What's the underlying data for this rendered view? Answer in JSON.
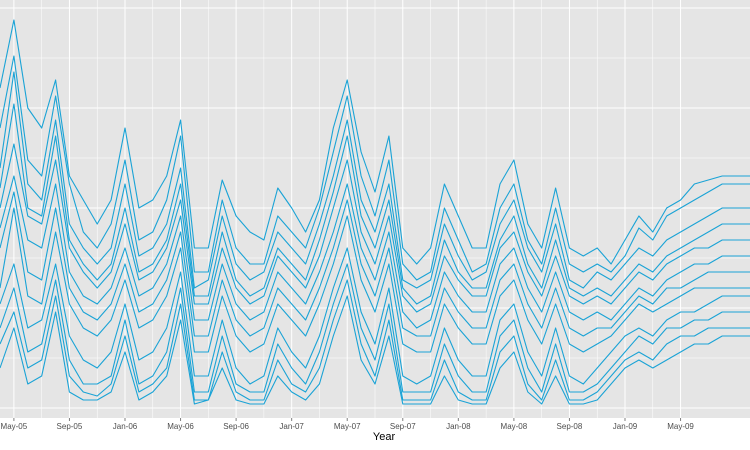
{
  "chart_data": {
    "type": "line",
    "xlabel": "Year",
    "ylabel": "",
    "title": "",
    "x_tick_labels": [
      "May-05",
      "Sep-05",
      "Jan-06",
      "May-06",
      "Sep-06",
      "Jan-07",
      "May-07",
      "Sep-07",
      "Jan-08",
      "May-08",
      "Sep-08",
      "Jan-09",
      "May-09"
    ],
    "xlim": [
      "2005-04-01",
      "2009-10-01"
    ],
    "ylim": [
      0,
      100
    ],
    "grid": true,
    "legend": "none",
    "colors": {
      "panel": "#e5e5e5",
      "grid": "#ffffff",
      "line": "#1aa3d6"
    },
    "x": [
      "2005-04",
      "2005-05",
      "2005-06",
      "2005-07",
      "2005-08",
      "2005-09",
      "2005-10",
      "2005-11",
      "2005-12",
      "2006-01",
      "2006-02",
      "2006-03",
      "2006-04",
      "2006-05",
      "2006-06",
      "2006-07",
      "2006-08",
      "2006-09",
      "2006-10",
      "2006-11",
      "2006-12",
      "2007-01",
      "2007-02",
      "2007-03",
      "2007-04",
      "2007-05",
      "2007-06",
      "2007-07",
      "2007-08",
      "2007-09",
      "2007-10",
      "2007-11",
      "2007-12",
      "2008-01",
      "2008-02",
      "2008-03",
      "2008-04",
      "2008-05",
      "2008-06",
      "2008-07",
      "2008-08",
      "2008-09",
      "2008-10",
      "2008-11",
      "2008-12",
      "2009-01",
      "2009-02",
      "2009-03",
      "2009-04",
      "2009-05",
      "2009-06",
      "2009-07",
      "2009-08",
      "2009-09",
      "2009-10"
    ],
    "series": [
      {
        "values": [
          80,
          97,
          75,
          70,
          82,
          58,
          52,
          46,
          52,
          70,
          50,
          52,
          58,
          72,
          40,
          40,
          57,
          48,
          44,
          42,
          55,
          50,
          44,
          52,
          70,
          82,
          64,
          54,
          68,
          40,
          36,
          40,
          56,
          48,
          40,
          40,
          56,
          62,
          46,
          40,
          55,
          40,
          38,
          40,
          36,
          42,
          48,
          44,
          50,
          52,
          56,
          57,
          58,
          58,
          58
        ]
      },
      {
        "values": [
          70,
          88,
          62,
          58,
          78,
          56,
          44,
          40,
          46,
          62,
          42,
          44,
          52,
          68,
          34,
          34,
          52,
          40,
          36,
          36,
          48,
          44,
          40,
          50,
          64,
          78,
          58,
          48,
          62,
          36,
          32,
          34,
          50,
          42,
          34,
          36,
          50,
          56,
          42,
          36,
          50,
          36,
          34,
          36,
          34,
          38,
          45,
          42,
          48,
          50,
          52,
          54,
          56,
          56,
          56
        ]
      },
      {
        "values": [
          60,
          84,
          56,
          52,
          72,
          46,
          40,
          36,
          40,
          56,
          38,
          40,
          46,
          60,
          30,
          32,
          48,
          36,
          32,
          34,
          44,
          40,
          36,
          46,
          58,
          72,
          52,
          44,
          56,
          32,
          30,
          32,
          46,
          38,
          32,
          34,
          46,
          52,
          40,
          34,
          46,
          32,
          30,
          34,
          32,
          36,
          40,
          38,
          42,
          44,
          46,
          48,
          50,
          50,
          50
        ]
      },
      {
        "values": [
          55,
          76,
          50,
          48,
          68,
          42,
          36,
          32,
          36,
          50,
          34,
          36,
          42,
          56,
          28,
          28,
          44,
          32,
          28,
          30,
          40,
          36,
          32,
          42,
          54,
          68,
          48,
          40,
          52,
          30,
          26,
          28,
          42,
          34,
          30,
          30,
          42,
          48,
          36,
          30,
          42,
          30,
          28,
          30,
          28,
          32,
          36,
          34,
          38,
          40,
          42,
          44,
          46,
          46,
          46
        ]
      },
      {
        "values": [
          50,
          66,
          48,
          46,
          62,
          40,
          34,
          30,
          34,
          46,
          32,
          34,
          40,
          52,
          26,
          26,
          40,
          30,
          26,
          28,
          38,
          34,
          30,
          38,
          50,
          62,
          44,
          36,
          48,
          28,
          24,
          26,
          38,
          32,
          28,
          28,
          40,
          44,
          34,
          28,
          38,
          28,
          26,
          28,
          26,
          30,
          34,
          32,
          36,
          38,
          40,
          40,
          42,
          42,
          42
        ]
      },
      {
        "values": [
          45,
          58,
          42,
          40,
          56,
          34,
          28,
          26,
          30,
          40,
          28,
          30,
          36,
          48,
          22,
          22,
          36,
          26,
          22,
          24,
          34,
          30,
          26,
          34,
          44,
          56,
          40,
          32,
          44,
          24,
          20,
          22,
          34,
          28,
          24,
          24,
          36,
          40,
          30,
          24,
          34,
          24,
          22,
          24,
          22,
          26,
          30,
          28,
          32,
          34,
          36,
          36,
          38,
          38,
          38
        ]
      },
      {
        "values": [
          40,
          54,
          34,
          32,
          50,
          30,
          24,
          22,
          26,
          36,
          24,
          26,
          32,
          44,
          18,
          18,
          32,
          22,
          18,
          20,
          30,
          26,
          22,
          30,
          40,
          52,
          36,
          28,
          40,
          20,
          18,
          18,
          30,
          24,
          20,
          20,
          32,
          36,
          26,
          20,
          30,
          20,
          18,
          20,
          20,
          24,
          28,
          26,
          30,
          30,
          32,
          34,
          34,
          34,
          34
        ]
      },
      {
        "values": [
          30,
          50,
          28,
          26,
          44,
          26,
          20,
          18,
          22,
          32,
          20,
          22,
          28,
          40,
          14,
          14,
          28,
          18,
          14,
          16,
          26,
          22,
          18,
          26,
          36,
          48,
          32,
          24,
          36,
          16,
          14,
          14,
          26,
          20,
          16,
          16,
          28,
          32,
          22,
          16,
          26,
          16,
          14,
          16,
          18,
          22,
          26,
          24,
          26,
          28,
          30,
          30,
          30,
          30,
          30
        ]
      },
      {
        "values": [
          26,
          36,
          20,
          22,
          36,
          18,
          12,
          10,
          14,
          26,
          12,
          14,
          20,
          34,
          8,
          8,
          22,
          10,
          6,
          8,
          20,
          14,
          10,
          18,
          30,
          40,
          24,
          16,
          30,
          8,
          6,
          8,
          20,
          12,
          8,
          8,
          22,
          26,
          14,
          8,
          20,
          8,
          6,
          10,
          14,
          18,
          20,
          18,
          22,
          24,
          24,
          26,
          28,
          28,
          28
        ]
      },
      {
        "values": [
          20,
          30,
          14,
          16,
          32,
          12,
          6,
          6,
          8,
          22,
          6,
          8,
          14,
          30,
          4,
          4,
          18,
          6,
          4,
          4,
          16,
          10,
          6,
          14,
          26,
          36,
          20,
          12,
          26,
          4,
          4,
          4,
          16,
          8,
          4,
          4,
          18,
          22,
          10,
          4,
          16,
          4,
          4,
          6,
          10,
          14,
          18,
          16,
          20,
          20,
          22,
          22,
          24,
          24,
          24
        ]
      },
      {
        "values": [
          16,
          24,
          10,
          12,
          28,
          8,
          4,
          3,
          6,
          18,
          4,
          6,
          10,
          26,
          2,
          2,
          14,
          4,
          2,
          2,
          12,
          6,
          4,
          10,
          22,
          32,
          16,
          8,
          22,
          2,
          2,
          2,
          12,
          4,
          2,
          2,
          14,
          18,
          6,
          2,
          12,
          2,
          2,
          4,
          8,
          12,
          14,
          12,
          16,
          18,
          18,
          20,
          20,
          20,
          20
        ]
      },
      {
        "values": [
          10,
          20,
          6,
          8,
          24,
          4,
          2,
          2,
          4,
          14,
          2,
          4,
          8,
          22,
          1,
          2,
          10,
          2,
          1,
          1,
          8,
          4,
          2,
          6,
          18,
          28,
          12,
          6,
          18,
          1,
          1,
          1,
          8,
          2,
          1,
          1,
          10,
          14,
          4,
          1,
          8,
          1,
          1,
          2,
          6,
          10,
          12,
          10,
          12,
          14,
          16,
          16,
          18,
          18,
          18
        ]
      }
    ]
  }
}
